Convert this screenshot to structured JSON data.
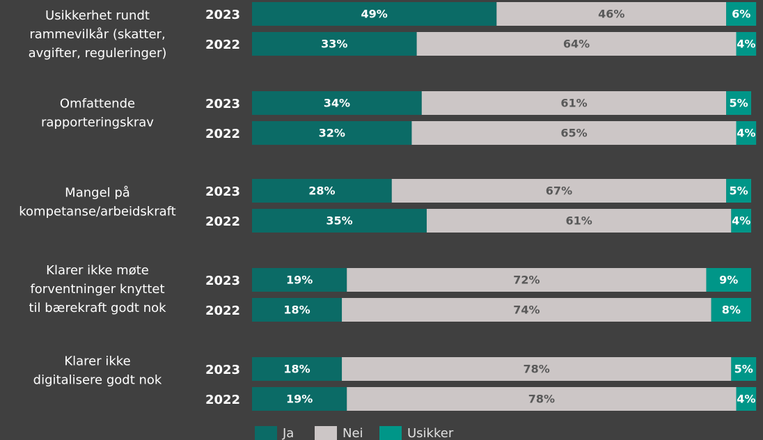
{
  "chart_data": {
    "type": "stacked_bar",
    "groups": [
      [
        "Usikkerhet rundt",
        "rammevilkår (skatter,",
        "avgifter, reguleringer)"
      ],
      [
        "Omfattende",
        "rapporteringskrav"
      ],
      [
        "Mangel på",
        "kompetanse/arbeidskraft"
      ],
      [
        "Klarer ikke møte",
        "forventninger knyttet",
        "til bærekraft godt nok"
      ],
      [
        "Klarer ikke",
        "digitalisere godt nok"
      ]
    ],
    "categories": [
      "2023",
      "2022",
      "2023",
      "2022",
      "2023",
      "2022",
      "2023",
      "2022",
      "2023",
      "2022"
    ],
    "xlim": [
      0,
      100
    ],
    "legend": "bottom",
    "series": [
      {
        "name": "Ja",
        "color": "#0b6b66",
        "label_color": "#ffffff",
        "values": [
          49,
          33,
          34,
          32,
          28,
          35,
          19,
          18,
          18,
          19
        ],
        "value_labels": [
          "49%",
          "33%",
          "34%",
          "32%",
          "28%",
          "35%",
          "19%",
          "18%",
          "18%",
          "19%"
        ]
      },
      {
        "name": "Nei",
        "color": "#ccc6c6",
        "label_color": "#595959",
        "values": [
          46,
          64,
          61,
          65,
          67,
          61,
          72,
          74,
          78,
          78
        ],
        "value_labels": [
          "46%",
          "64%",
          "61%",
          "65%",
          "67%",
          "61%",
          "72%",
          "74%",
          "78%",
          "78%"
        ]
      },
      {
        "name": "Usikker",
        "color": "#009688",
        "label_color": "#ffffff",
        "values": [
          6,
          4,
          5,
          4,
          5,
          4,
          9,
          8,
          5,
          4
        ],
        "value_labels": [
          "6%",
          "4%",
          "5%",
          "4%",
          "5%",
          "4%",
          "9%",
          "8%",
          "5%",
          "4%"
        ]
      }
    ]
  }
}
